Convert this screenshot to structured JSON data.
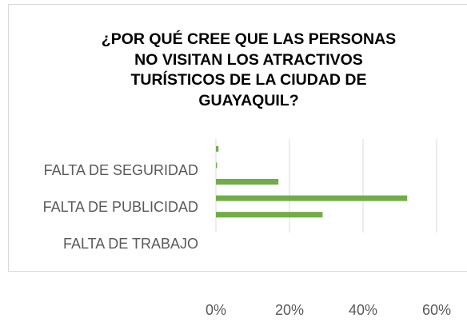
{
  "chart_data": {
    "type": "barh",
    "title": "¿POR QUÉ CREE QUE LAS PERSONAS NO VISITAN LOS ATRACTIVOS TURÍSTICOS DE LA CIUDAD DE GUAYAQUIL?",
    "categories": [
      null,
      null,
      "FALTA DE SEGURIDAD",
      "FALTA DE PUBLICIDAD",
      "FALTA DE TRABAJO"
    ],
    "values": [
      0.7,
      0.3,
      17,
      52,
      29
    ],
    "color": "#70ad47",
    "xlim": [
      0,
      60
    ],
    "xticks": [
      {
        "value": 0,
        "label": "0%"
      },
      {
        "value": 20,
        "label": "20%"
      },
      {
        "value": 40,
        "label": "40%"
      },
      {
        "value": 60,
        "label": "60%"
      }
    ],
    "grid": true
  }
}
